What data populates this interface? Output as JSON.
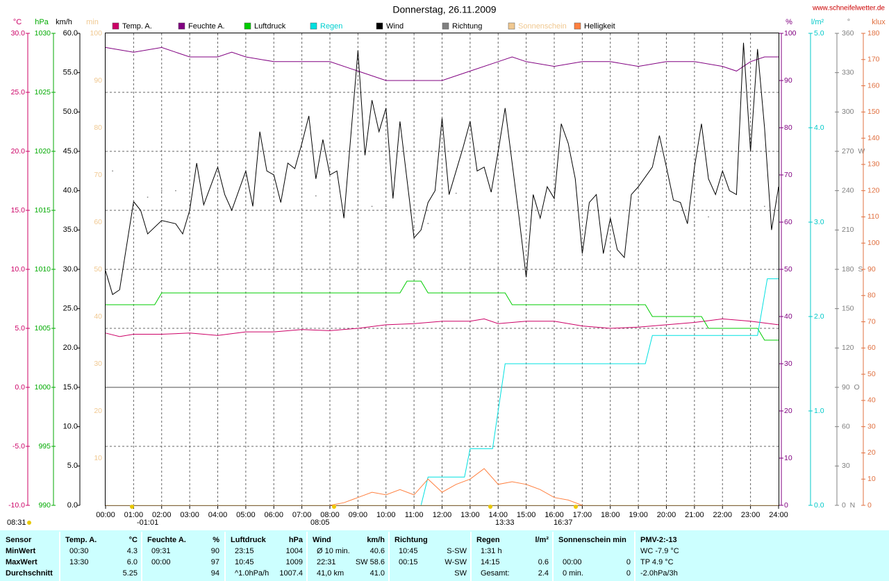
{
  "chart_data": {
    "type": "line",
    "title": "Donnerstag, 26.11.2009",
    "source": "www.schneifelwetter.de",
    "xlim": [
      0,
      24
    ],
    "xticks": [
      {
        "value": 0,
        "label": "00:00"
      },
      {
        "value": 1,
        "label": "01:00"
      },
      {
        "value": 2,
        "label": "02:00"
      },
      {
        "value": 3,
        "label": "03:00"
      },
      {
        "value": 4,
        "label": "04:00"
      },
      {
        "value": 5,
        "label": "05:00"
      },
      {
        "value": 6,
        "label": "06:00"
      },
      {
        "value": 7,
        "label": "07:00"
      },
      {
        "value": 8,
        "label": "08:00"
      },
      {
        "value": 9,
        "label": "09:00"
      },
      {
        "value": 10,
        "label": "10:00"
      },
      {
        "value": 11,
        "label": "11:00"
      },
      {
        "value": 12,
        "label": "12:00"
      },
      {
        "value": 13,
        "label": "13:00"
      },
      {
        "value": 14,
        "label": "14:00"
      },
      {
        "value": 15,
        "label": "15:00"
      },
      {
        "value": 16,
        "label": "16:00"
      },
      {
        "value": 17,
        "label": "17:00"
      },
      {
        "value": 18,
        "label": "18:00"
      },
      {
        "value": 19,
        "label": "19:00"
      },
      {
        "value": 20,
        "label": "20:00"
      },
      {
        "value": 21,
        "label": "21:00"
      },
      {
        "value": 22,
        "label": "22:00"
      },
      {
        "value": 23,
        "label": "23:00"
      },
      {
        "value": 24,
        "label": "24:00"
      }
    ],
    "ylabel": "km/h",
    "ylim": [
      0,
      60
    ],
    "yticks": [
      {
        "value": 0,
        "label": "0.0"
      },
      {
        "value": 5,
        "label": "5.0"
      },
      {
        "value": 10,
        "label": "10.0"
      },
      {
        "value": 15,
        "label": "15.0"
      },
      {
        "value": 20,
        "label": "20.0"
      },
      {
        "value": 25,
        "label": "25.0"
      },
      {
        "value": 30,
        "label": "30.0"
      },
      {
        "value": 35,
        "label": "35.0"
      },
      {
        "value": 40,
        "label": "40.0"
      },
      {
        "value": 45,
        "label": "45.0"
      },
      {
        "value": 50,
        "label": "50.0"
      },
      {
        "value": 55,
        "label": "55.0"
      },
      {
        "value": 60,
        "label": "60.0"
      }
    ],
    "grid": true,
    "axes": [
      {
        "label": "°C",
        "color": "#cc0066",
        "lim": [
          -10,
          30
        ],
        "ticks": [
          {
            "value": -10,
            "label": "-10.0"
          },
          {
            "value": -5,
            "label": "-5.0"
          },
          {
            "value": 0,
            "label": "0.0"
          },
          {
            "value": 5,
            "label": "5.0"
          },
          {
            "value": 10,
            "label": "10.0"
          },
          {
            "value": 15,
            "label": "15.0"
          },
          {
            "value": 20,
            "label": "20.0"
          },
          {
            "value": 25,
            "label": "25.0"
          },
          {
            "value": 30,
            "label": "30.0"
          }
        ]
      },
      {
        "label": "hPa",
        "color": "#00aa00",
        "lim": [
          990,
          1030
        ],
        "ticks": [
          990,
          995,
          1000,
          1005,
          1010,
          1015,
          1020,
          1025,
          1030
        ]
      },
      {
        "label": "min",
        "color": "#f0c890",
        "lim": [
          0,
          100
        ],
        "ticks": [
          10,
          20,
          30,
          40,
          50,
          60,
          70,
          80,
          90,
          100
        ]
      },
      {
        "label": "%",
        "color": "#800080",
        "lim": [
          0,
          100
        ],
        "ticks": [
          0,
          10,
          20,
          30,
          40,
          50,
          60,
          70,
          80,
          90,
          100
        ]
      },
      {
        "label": "l/m²",
        "color": "#00c8c8",
        "lim": [
          0,
          5
        ],
        "ticks": [
          {
            "value": 0,
            "label": "0.0"
          },
          {
            "value": 1,
            "label": "1.0"
          },
          {
            "value": 2,
            "label": "2.0"
          },
          {
            "value": 3,
            "label": "3.0"
          },
          {
            "value": 4,
            "label": "4.0"
          },
          {
            "value": 5,
            "label": "5.0"
          }
        ]
      },
      {
        "label": "°",
        "color": "#808080",
        "lim": [
          0,
          360
        ],
        "ticks": [
          {
            "value": 0,
            "label": "0  N"
          },
          30,
          60,
          {
            "value": 90,
            "label": "90  O"
          },
          120,
          150,
          {
            "value": 180,
            "label": "180  S"
          },
          210,
          240,
          {
            "value": 270,
            "label": "270  W"
          },
          300,
          330,
          360
        ]
      },
      {
        "label": "klux",
        "color": "#e07040",
        "lim": [
          0,
          180
        ],
        "ticks": [
          0,
          10,
          20,
          30,
          40,
          50,
          60,
          70,
          80,
          90,
          100,
          110,
          120,
          130,
          140,
          150,
          160,
          170,
          180
        ]
      }
    ],
    "series": [
      {
        "name": "Temp. A.",
        "color": "#cc0066",
        "axis": 0,
        "x": [
          0,
          0.5,
          1,
          1.5,
          2,
          3,
          4,
          5,
          6,
          7,
          8,
          9,
          10,
          11,
          12,
          13,
          13.5,
          14,
          15,
          16,
          17,
          18,
          19,
          20,
          21,
          22,
          23,
          24
        ],
        "values": [
          4.6,
          4.3,
          4.5,
          4.5,
          4.5,
          4.6,
          4.4,
          4.7,
          4.7,
          4.9,
          4.8,
          5.0,
          5.3,
          5.4,
          5.6,
          5.6,
          5.8,
          5.4,
          5.6,
          5.6,
          5.2,
          5.0,
          5.1,
          5.3,
          5.5,
          5.8,
          5.6,
          5.3
        ]
      },
      {
        "name": "Feuchte A.",
        "color": "#800080",
        "axis": 3,
        "x": [
          0,
          1,
          2,
          3,
          4,
          4.5,
          5,
          6,
          7,
          8,
          9,
          10,
          11,
          12,
          13,
          14,
          14.5,
          15,
          16,
          17,
          18,
          19,
          20,
          21,
          22,
          22.5,
          23,
          23.5,
          24
        ],
        "values": [
          97,
          96,
          97,
          95,
          95,
          96,
          95,
          94,
          94,
          94,
          92,
          90,
          90,
          90,
          92,
          94,
          95,
          94,
          93,
          94,
          94,
          93,
          94,
          94,
          93,
          92,
          94,
          95,
          95
        ]
      },
      {
        "name": "Luftdruck",
        "color": "#00cc00",
        "axis": 1,
        "x": [
          0,
          1.75,
          2,
          10.5,
          10.75,
          11.25,
          11.5,
          14.25,
          14.5,
          19.25,
          19.5,
          21.25,
          21.5,
          23.25,
          23.5,
          24
        ],
        "values": [
          1007,
          1007,
          1008,
          1008,
          1009,
          1009,
          1008,
          1008,
          1007,
          1007,
          1006,
          1006,
          1005,
          1005,
          1004,
          1004
        ]
      },
      {
        "name": "Regen",
        "color": "#00e0e0",
        "label_color": "#00d0d0",
        "axis": 4,
        "x": [
          0,
          11.25,
          11.5,
          12.8,
          13,
          13.8,
          14.25,
          19.25,
          19.5,
          23.25,
          23.6,
          24
        ],
        "values": [
          0,
          0,
          0.3,
          0.3,
          0.6,
          0.6,
          1.5,
          1.5,
          1.8,
          1.8,
          2.4,
          2.4
        ]
      },
      {
        "name": "Wind",
        "color": "#000000",
        "x": [
          0,
          0.25,
          0.5,
          1,
          1.25,
          1.5,
          2,
          2.5,
          2.75,
          3,
          3.25,
          3.5,
          4,
          4.25,
          4.5,
          5,
          5.25,
          5.5,
          5.75,
          6,
          6.25,
          6.5,
          6.75,
          7,
          7.25,
          7.5,
          7.75,
          8,
          8.25,
          8.5,
          9,
          9.25,
          9.5,
          9.75,
          10,
          10.25,
          10.5,
          11,
          11.25,
          11.5,
          11.75,
          12,
          12.25,
          12.5,
          12.75,
          13,
          13.25,
          13.5,
          13.75,
          14,
          14.25,
          14.75,
          15,
          15.25,
          15.5,
          15.75,
          16,
          16.25,
          16.5,
          16.75,
          17,
          17.25,
          17.5,
          17.75,
          18,
          18.25,
          18.5,
          18.75,
          19,
          19.5,
          19.75,
          20,
          20.25,
          20.5,
          20.75,
          21,
          21.25,
          21.5,
          21.75,
          22,
          22.25,
          22.5,
          22.75,
          23,
          23.25,
          23.5,
          23.75,
          24
        ],
        "values": [
          29.8,
          26.8,
          27.4,
          38.6,
          37.5,
          34.5,
          36.2,
          35.8,
          34.5,
          37.5,
          43.5,
          38.2,
          43,
          39.5,
          37.5,
          42.5,
          38,
          47.5,
          42.5,
          42,
          38.5,
          43.5,
          42.8,
          46,
          49.5,
          41.5,
          46.5,
          42,
          42.5,
          36.5,
          57.8,
          44.5,
          51.5,
          47.5,
          50.5,
          39,
          48.8,
          34,
          35,
          38.5,
          40,
          49.2,
          39.5,
          42.5,
          45.5,
          48.8,
          42.5,
          43,
          39.8,
          45,
          50.5,
          36.5,
          29,
          39.5,
          36.5,
          40.5,
          39,
          48.5,
          46,
          41.5,
          32,
          38.5,
          39.5,
          32,
          36.5,
          32.5,
          31.5,
          39.5,
          40.5,
          43,
          47,
          43,
          38.8,
          38.5,
          35.8,
          43,
          48.5,
          41.5,
          39.5,
          42.5,
          40,
          39.5,
          58.8,
          45,
          58,
          48,
          35,
          40.5
        ]
      },
      {
        "name": "Richtung",
        "color": "#808080",
        "axis": 5,
        "dots": true,
        "x": [
          0.25,
          1,
          1.5,
          2,
          2.5,
          3,
          4,
          5,
          6,
          7,
          7.5,
          8,
          9,
          9.5,
          10,
          11,
          11.5,
          12,
          12.5,
          13,
          14,
          15,
          16,
          17,
          18,
          19,
          20,
          21,
          21.5,
          22,
          23,
          23.5
        ],
        "values": [
          255,
          232,
          235,
          240,
          240,
          238,
          240,
          238,
          235,
          238,
          236,
          225,
          232,
          228,
          228,
          212,
          215,
          235,
          238,
          215,
          238,
          235,
          240,
          228,
          232,
          233,
          236,
          214,
          220,
          214,
          212,
          228
        ]
      },
      {
        "name": "Sonnenschein",
        "color": "#f0c890",
        "label_color": "#f0c890",
        "axis": 2,
        "x": [
          0,
          24
        ],
        "values": [
          0,
          0
        ]
      },
      {
        "name": "Helligkeit",
        "color": "#ff8040",
        "axis": 6,
        "x": [
          8,
          8.5,
          9,
          9.5,
          10,
          10.5,
          11,
          11.5,
          12,
          12.5,
          13,
          13.5,
          14,
          14.5,
          15,
          15.5,
          16,
          16.5,
          17
        ],
        "values": [
          0,
          1,
          3,
          5,
          4,
          6,
          4,
          10,
          5,
          8,
          10,
          14,
          8,
          9,
          8,
          6,
          3,
          2,
          0
        ]
      }
    ],
    "annotations": [
      "08:31",
      "-01:01",
      "08:05",
      "13:33",
      "16:37"
    ]
  },
  "table": {
    "sensor": [
      "Sensor",
      "MinWert",
      "MaxWert",
      "Durchschnitt"
    ],
    "groups": [
      {
        "title": "Temp. A.",
        "unit": "°C",
        "rows": [
          [
            "00:30",
            "4.3"
          ],
          [
            "13:30",
            "6.0"
          ],
          [
            null,
            "5.25"
          ]
        ]
      },
      {
        "title": "Feuchte A.",
        "unit": "%",
        "rows": [
          [
            "09:31",
            "90"
          ],
          [
            "00:00",
            "97"
          ],
          [
            null,
            "94"
          ]
        ]
      },
      {
        "title": "Luftdruck",
        "unit": "hPa",
        "rows": [
          [
            "23:15",
            "1004"
          ],
          [
            "10:45",
            "1009"
          ],
          [
            "^1.0hPa/h",
            "1007.4"
          ]
        ]
      },
      {
        "title": "Wind",
        "unit": "km/h",
        "rows": [
          [
            "Ø 10 min.",
            "40.6"
          ],
          [
            "22:31",
            "SW 58.6"
          ],
          [
            "41,0 km",
            "41.0"
          ]
        ]
      },
      {
        "title": "Richtung",
        "unit": null,
        "rows": [
          [
            "10:45",
            "S-SW"
          ],
          [
            "00:15",
            "W-SW"
          ],
          [
            null,
            "SW"
          ]
        ]
      },
      {
        "title": "Regen",
        "unit": "l/m²",
        "rows": [
          [
            "1:31 h",
            null
          ],
          [
            "14:15",
            "0.6"
          ],
          [
            "Gesamt:",
            "2.4"
          ]
        ]
      },
      {
        "title": "Sonnenschein min",
        "unit": null,
        "rows": [
          [
            null,
            null
          ],
          [
            "00:00",
            "0"
          ],
          [
            "0 min.",
            "0"
          ]
        ]
      },
      {
        "title": "PMV-2:-13",
        "unit": null,
        "rows": [
          [
            "WC -7.9 °C",
            null
          ],
          [
            "TP 4.9 °C",
            null
          ],
          [
            "-2.0hPa/3h",
            null
          ]
        ]
      }
    ]
  }
}
